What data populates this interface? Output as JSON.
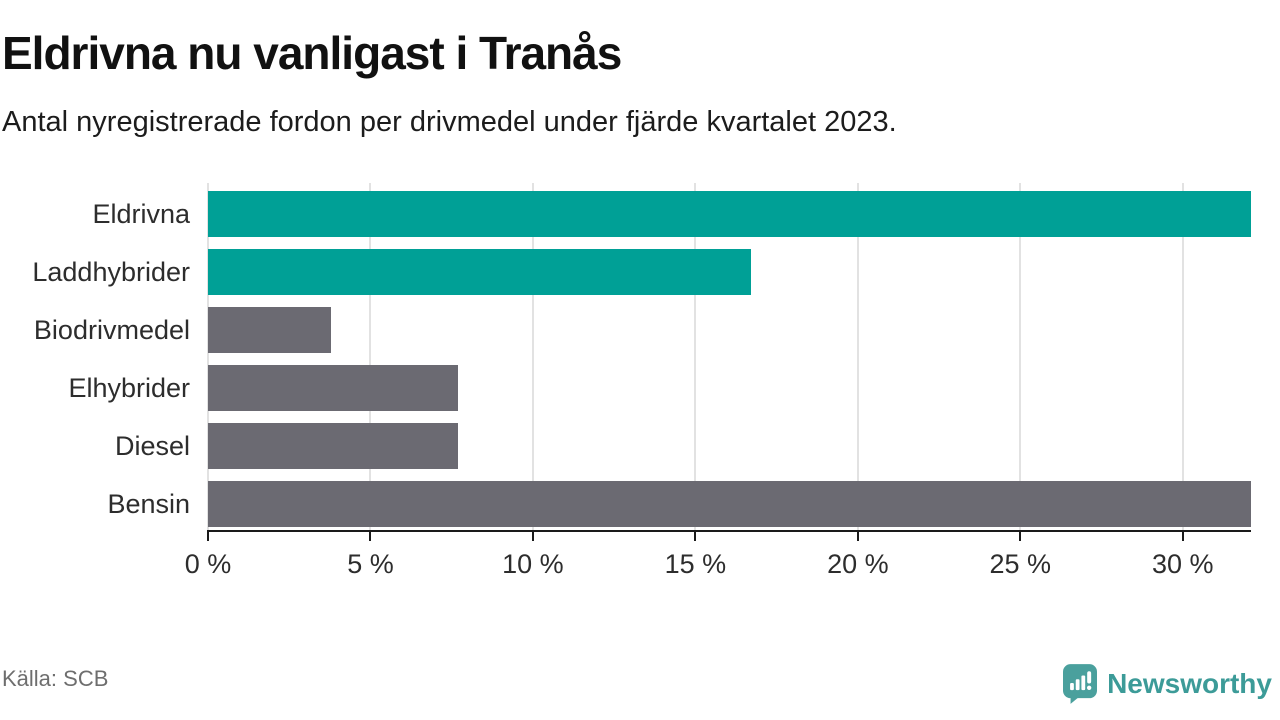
{
  "header": {
    "title": "Eldrivna nu vanligast i Tranås",
    "subtitle": "Antal nyregistrerade fordon per drivmedel under fjärde kvartalet 2023."
  },
  "chart_data": {
    "type": "bar",
    "orientation": "horizontal",
    "title": "Eldrivna nu vanligast i Tranås",
    "subtitle": "Antal nyregistrerade fordon per drivmedel under fjärde kvartalet 2023.",
    "categories": [
      "Eldrivna",
      "Laddhybrider",
      "Biodrivmedel",
      "Elhybrider",
      "Diesel",
      "Bensin"
    ],
    "values": [
      32.1,
      16.7,
      3.8,
      7.7,
      7.7,
      32.1
    ],
    "unit": "%",
    "xlim": [
      0,
      32.1
    ],
    "x_ticks": [
      0,
      5,
      10,
      15,
      20,
      25,
      30
    ],
    "x_tick_labels": [
      "0 %",
      "5 %",
      "10 %",
      "15 %",
      "20 %",
      "25 %",
      "30 %"
    ],
    "grid": "vertical-only",
    "legend": "none",
    "bar_colors": [
      "#00a096",
      "#00a096",
      "#6b6a72",
      "#6b6a72",
      "#6b6a72",
      "#6b6a72"
    ]
  },
  "colors": {
    "highlight": "#00a096",
    "default_bar": "#6b6a72",
    "gridline": "#e2e2e2",
    "axis": "#1a1a1a",
    "brand_teal": "#4aa09d"
  },
  "footer": {
    "source": "Källa: SCB",
    "brand": "Newsworthy"
  }
}
